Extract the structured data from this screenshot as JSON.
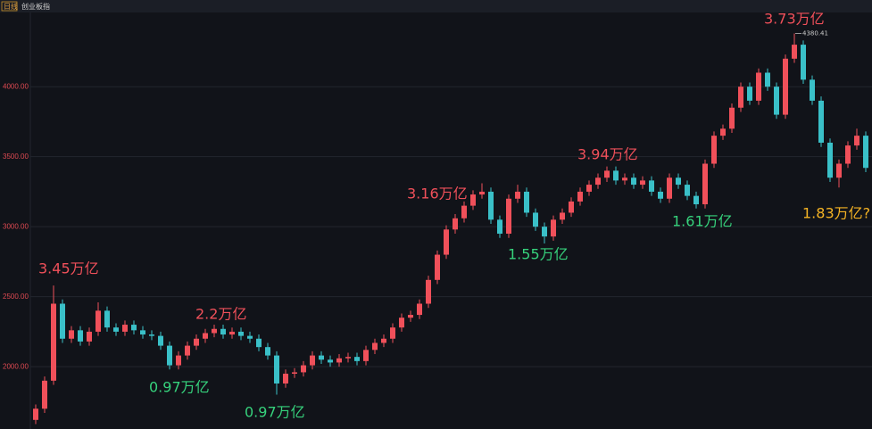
{
  "header": {
    "period": "日线",
    "name": "创业板指"
  },
  "chart_data": {
    "type": "candlestick",
    "up_color": "#f0505a",
    "down_color": "#3ac0c8",
    "grid": true,
    "ylim": [
      1555,
      4530
    ],
    "yticks": [
      {
        "value": 2000,
        "label": "2000.00"
      },
      {
        "value": 2500,
        "label": "2500.00"
      },
      {
        "value": 3000,
        "label": "3000.00"
      },
      {
        "value": 3500,
        "label": "3500.00"
      },
      {
        "value": 4000,
        "label": "4000.00"
      }
    ],
    "open": [
      1620,
      1700,
      1900,
      2450,
      2200,
      2260,
      2180,
      2250,
      2400,
      2280,
      2250,
      2300,
      2260,
      2230,
      2220,
      2150,
      2010,
      2080,
      2150,
      2200,
      2240,
      2270,
      2230,
      2250,
      2220,
      2200,
      2140,
      2080,
      1880,
      1950,
      1960,
      2010,
      2080,
      2050,
      2030,
      2060,
      2070,
      2040,
      2120,
      2170,
      2200,
      2280,
      2350,
      2370,
      2450,
      2620,
      2800,
      2980,
      3060,
      3150,
      3230,
      3250,
      3050,
      2950,
      3200,
      3250,
      3100,
      3000,
      2930,
      3050,
      3100,
      3180,
      3250,
      3300,
      3350,
      3400,
      3330,
      3350,
      3300,
      3330,
      3250,
      3200,
      3350,
      3300,
      3220,
      3160,
      3450,
      3650,
      3700,
      3850,
      4000,
      3900,
      4100,
      4000,
      3800,
      4200,
      4300,
      4050,
      3900,
      3600,
      3350,
      3450,
      3580,
      3650
    ],
    "high": [
      1730,
      1930,
      2580,
      2480,
      2290,
      2290,
      2280,
      2460,
      2430,
      2310,
      2330,
      2330,
      2290,
      2260,
      2250,
      2180,
      2110,
      2180,
      2230,
      2270,
      2300,
      2300,
      2280,
      2280,
      2250,
      2230,
      2170,
      2110,
      1980,
      1990,
      2040,
      2110,
      2110,
      2080,
      2090,
      2100,
      2100,
      2150,
      2200,
      2230,
      2310,
      2380,
      2400,
      2480,
      2650,
      2830,
      3010,
      3090,
      3180,
      3260,
      3310,
      3280,
      3080,
      3230,
      3300,
      3280,
      3130,
      3030,
      3080,
      3130,
      3210,
      3280,
      3330,
      3380,
      3430,
      3430,
      3380,
      3380,
      3360,
      3360,
      3280,
      3380,
      3380,
      3330,
      3250,
      3480,
      3680,
      3730,
      3880,
      4030,
      4030,
      4130,
      4130,
      4030,
      4230,
      4380.41,
      4330,
      4080,
      3930,
      3630,
      3480,
      3610,
      3700,
      3680
    ],
    "low": [
      1590,
      1670,
      1870,
      2170,
      2170,
      2150,
      2150,
      2220,
      2250,
      2220,
      2220,
      2230,
      2200,
      2190,
      2120,
      1980,
      1980,
      2050,
      2120,
      2170,
      2210,
      2200,
      2200,
      2190,
      2170,
      2110,
      2050,
      1800,
      1850,
      1920,
      1930,
      1980,
      2020,
      2000,
      2000,
      2030,
      2010,
      2010,
      2090,
      2140,
      2170,
      2250,
      2320,
      2340,
      2420,
      2590,
      2770,
      2950,
      3030,
      3120,
      3200,
      3020,
      2920,
      2920,
      3170,
      3070,
      2970,
      2880,
      2900,
      3020,
      3070,
      3150,
      3220,
      3270,
      3320,
      3300,
      3300,
      3270,
      3270,
      3220,
      3170,
      3170,
      3270,
      3190,
      3130,
      3130,
      3420,
      3620,
      3670,
      3820,
      3870,
      3870,
      3970,
      3770,
      3770,
      4170,
      4020,
      3870,
      3570,
      3320,
      3280,
      3420,
      3550,
      3390
    ],
    "close": [
      1700,
      1900,
      2450,
      2200,
      2260,
      2180,
      2250,
      2400,
      2280,
      2250,
      2300,
      2260,
      2230,
      2220,
      2150,
      2010,
      2080,
      2150,
      2200,
      2240,
      2270,
      2230,
      2250,
      2220,
      2200,
      2140,
      2080,
      1880,
      1950,
      1960,
      2010,
      2080,
      2050,
      2030,
      2060,
      2070,
      2040,
      2120,
      2170,
      2200,
      2280,
      2350,
      2370,
      2450,
      2620,
      2800,
      2980,
      3060,
      3150,
      3230,
      3250,
      3050,
      2950,
      3200,
      3250,
      3100,
      3000,
      2930,
      3050,
      3100,
      3180,
      3250,
      3300,
      3350,
      3400,
      3330,
      3350,
      3300,
      3330,
      3250,
      3200,
      3350,
      3300,
      3220,
      3160,
      3450,
      3650,
      3700,
      3850,
      4000,
      3900,
      4100,
      4000,
      3800,
      4200,
      4300,
      4050,
      3900,
      3600,
      3350,
      3450,
      3580,
      3650,
      3420
    ],
    "high_marker": 4380.41,
    "annotations": [
      {
        "text": "3.45万亿",
        "color": "#f0505a"
      },
      {
        "text": "0.97万亿",
        "color": "#36d27c"
      },
      {
        "text": "2.2万亿",
        "color": "#f0505a"
      },
      {
        "text": "0.97万亿",
        "color": "#36d27c"
      },
      {
        "text": "3.16万亿",
        "color": "#f0505a"
      },
      {
        "text": "1.55万亿",
        "color": "#36d27c"
      },
      {
        "text": "3.94万亿",
        "color": "#f0505a"
      },
      {
        "text": "1.61万亿",
        "color": "#36d27c"
      },
      {
        "text": "3.73万亿",
        "color": "#f0505a"
      },
      {
        "text": "1.83万亿?",
        "color": "#f5b324"
      }
    ]
  }
}
